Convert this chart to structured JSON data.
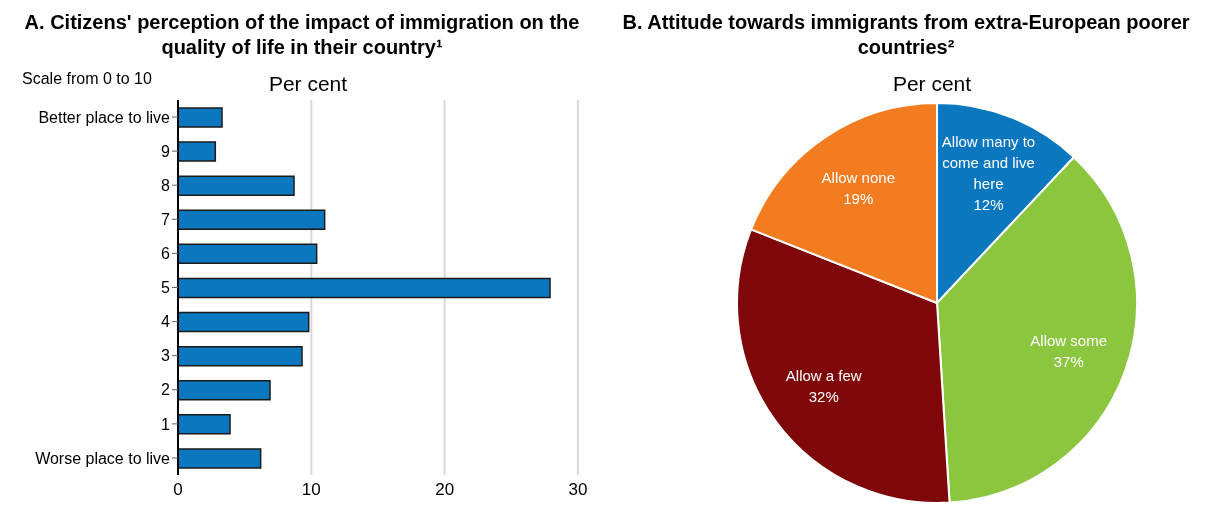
{
  "chart_data": [
    {
      "type": "bar",
      "orientation": "horizontal",
      "title": "A. Citizens' perception of the impact of immigration on the quality of life in their country¹",
      "subtitle": "Per cent",
      "ylabel": "Scale from 0 to 10",
      "categories": [
        "Better place to live",
        "9",
        "8",
        "7",
        "6",
        "5",
        "4",
        "3",
        "2",
        "1",
        "Worse place to live"
      ],
      "values": [
        3.3,
        2.8,
        8.7,
        11.0,
        10.4,
        27.9,
        9.8,
        9.3,
        6.9,
        3.9,
        6.2
      ],
      "color": "#0a77bf",
      "xlim": [
        0,
        30
      ],
      "xticks": [
        0,
        10,
        20,
        30
      ],
      "grid": "x",
      "legend": false
    },
    {
      "type": "pie",
      "title": "B. Attitude towards immigrants from extra-European poorer countries²",
      "subtitle": "Per cent",
      "categories": [
        "Allow many to come and live here",
        "Allow some",
        "Allow a few",
        "Allow none"
      ],
      "values": [
        12,
        37,
        32,
        19
      ],
      "colors": [
        "#0a77bf",
        "#8cc63f",
        "#7f0709",
        "#f47c20"
      ],
      "value_labels": [
        "12%",
        "37%",
        "32%",
        "19%"
      ],
      "legend": false
    }
  ]
}
